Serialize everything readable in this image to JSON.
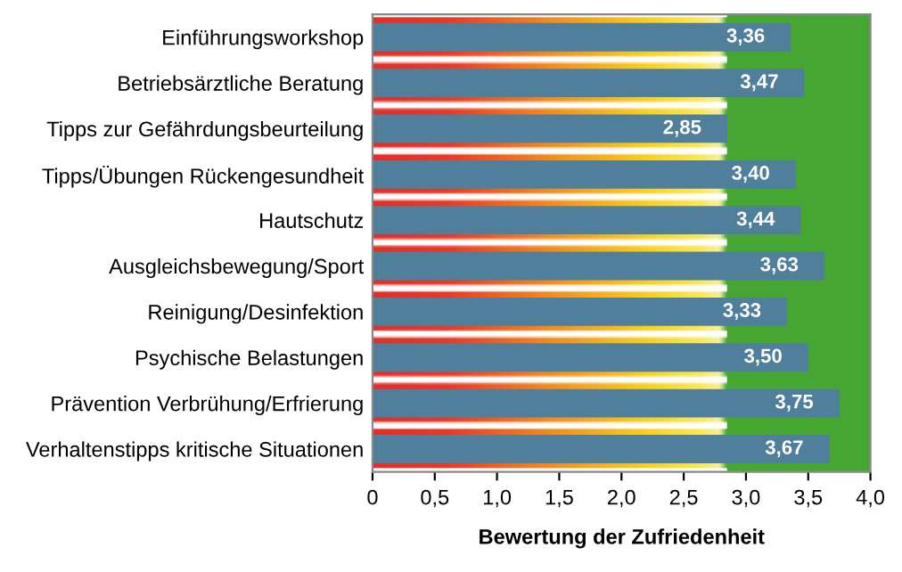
{
  "chart_data": {
    "type": "bar",
    "orientation": "horizontal",
    "xlabel": "Bewertung der Zufriedenheit",
    "categories": [
      "Einführungsworkshop",
      "Betriebsärztliche Beratung",
      "Tipps zur Gefährdungsbeurteilung",
      "Tipps/Übungen Rückengesundheit",
      "Hautschutz",
      "Ausgleichsbewegung/Sport",
      "Reinigung/Desinfektion",
      "Psychische Belastungen",
      "Prävention Verbrühung/Erfrierung",
      "Verhaltenstipps kritische Situationen"
    ],
    "values": [
      3.36,
      3.47,
      2.85,
      3.4,
      3.44,
      3.63,
      3.33,
      3.5,
      3.75,
      3.67
    ],
    "value_labels": [
      "3,36",
      "3,47",
      "2,85",
      "3,40",
      "3,44",
      "3,63",
      "3,33",
      "3,50",
      "3,75",
      "3,67"
    ],
    "color": "#4f7f9a",
    "xlim": [
      0,
      4
    ],
    "xticks": [
      0,
      {
        "value": 0.5,
        "label": "0,5"
      },
      {
        "value": 1.0,
        "label": "1,0"
      },
      {
        "value": 1.5,
        "label": "1,5"
      },
      {
        "value": 2.0,
        "label": "2,0"
      },
      {
        "value": 2.5,
        "label": "2,5"
      },
      {
        "value": 3.0,
        "label": "3,0"
      },
      {
        "value": 3.5,
        "label": "3,5"
      },
      {
        "value": 4.0,
        "label": "4,0"
      }
    ],
    "grid": false
  }
}
